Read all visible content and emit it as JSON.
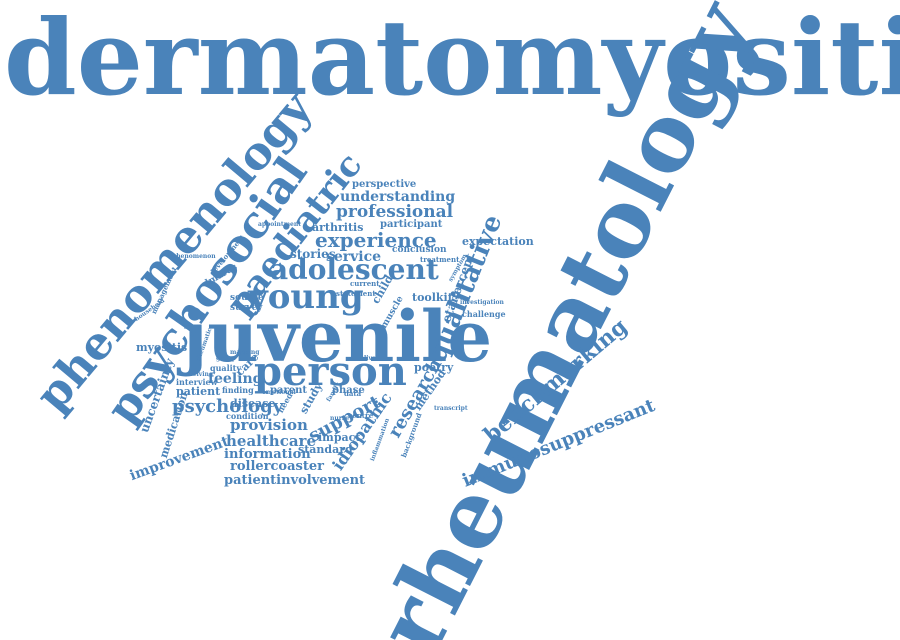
{
  "accent_color": "#4a83ba",
  "words": [
    {
      "text": "dermatomyositis"
    },
    {
      "text": "rheumatology"
    },
    {
      "text": "juvenile"
    },
    {
      "text": "phenomenology"
    },
    {
      "text": "psychosocial"
    },
    {
      "text": "paediatric"
    },
    {
      "text": "person"
    },
    {
      "text": "adolescent"
    },
    {
      "text": "young"
    },
    {
      "text": "qualitative"
    },
    {
      "text": "experience"
    },
    {
      "text": "professional"
    },
    {
      "text": "understanding"
    },
    {
      "text": "perspective"
    },
    {
      "text": "benchmarking"
    },
    {
      "text": "immunosuppressant"
    },
    {
      "text": "research"
    },
    {
      "text": "idiopathic"
    },
    {
      "text": "support"
    },
    {
      "text": "psychology"
    },
    {
      "text": "provision"
    },
    {
      "text": "healthcare"
    },
    {
      "text": "information"
    },
    {
      "text": "rollercoaster"
    },
    {
      "text": "patientinvolvement"
    },
    {
      "text": "improvement"
    },
    {
      "text": "uncertainty"
    },
    {
      "text": "medication"
    },
    {
      "text": "myositis"
    },
    {
      "text": "feeling"
    },
    {
      "text": "patient"
    },
    {
      "text": "service"
    },
    {
      "text": "stories"
    },
    {
      "text": "arthritis"
    },
    {
      "text": "participant"
    },
    {
      "text": "expectation"
    },
    {
      "text": "etanercept"
    },
    {
      "text": "toolkit"
    },
    {
      "text": "poetry"
    },
    {
      "text": "method"
    },
    {
      "text": "standard"
    },
    {
      "text": "impact"
    },
    {
      "text": "study"
    },
    {
      "text": "parent"
    },
    {
      "text": "phase"
    },
    {
      "text": "disease"
    },
    {
      "text": "care"
    },
    {
      "text": "child"
    },
    {
      "text": "muscle"
    },
    {
      "text": "conclusion"
    },
    {
      "text": "treatment"
    },
    {
      "text": "challenge"
    },
    {
      "text": "survey"
    },
    {
      "text": "source"
    },
    {
      "text": "finding"
    },
    {
      "text": "condition"
    },
    {
      "text": "interview"
    },
    {
      "text": "quality"
    },
    {
      "text": "need"
    },
    {
      "text": "dmards"
    },
    {
      "text": "development"
    },
    {
      "text": "management"
    },
    {
      "text": "inflammation"
    },
    {
      "text": "background"
    },
    {
      "text": "data"
    },
    {
      "text": "centre"
    },
    {
      "text": "current"
    },
    {
      "text": "statement"
    },
    {
      "text": "emotional"
    },
    {
      "text": "transcript"
    },
    {
      "text": "investigation"
    },
    {
      "text": "rheumatic"
    },
    {
      "text": "nurse"
    },
    {
      "text": "family"
    },
    {
      "text": "group"
    },
    {
      "text": "receiving"
    },
    {
      "text": "household"
    },
    {
      "text": "phenomenon"
    },
    {
      "text": "appointment"
    },
    {
      "text": "symptom"
    },
    {
      "text": "lived"
    },
    {
      "text": "mapping"
    }
  ]
}
